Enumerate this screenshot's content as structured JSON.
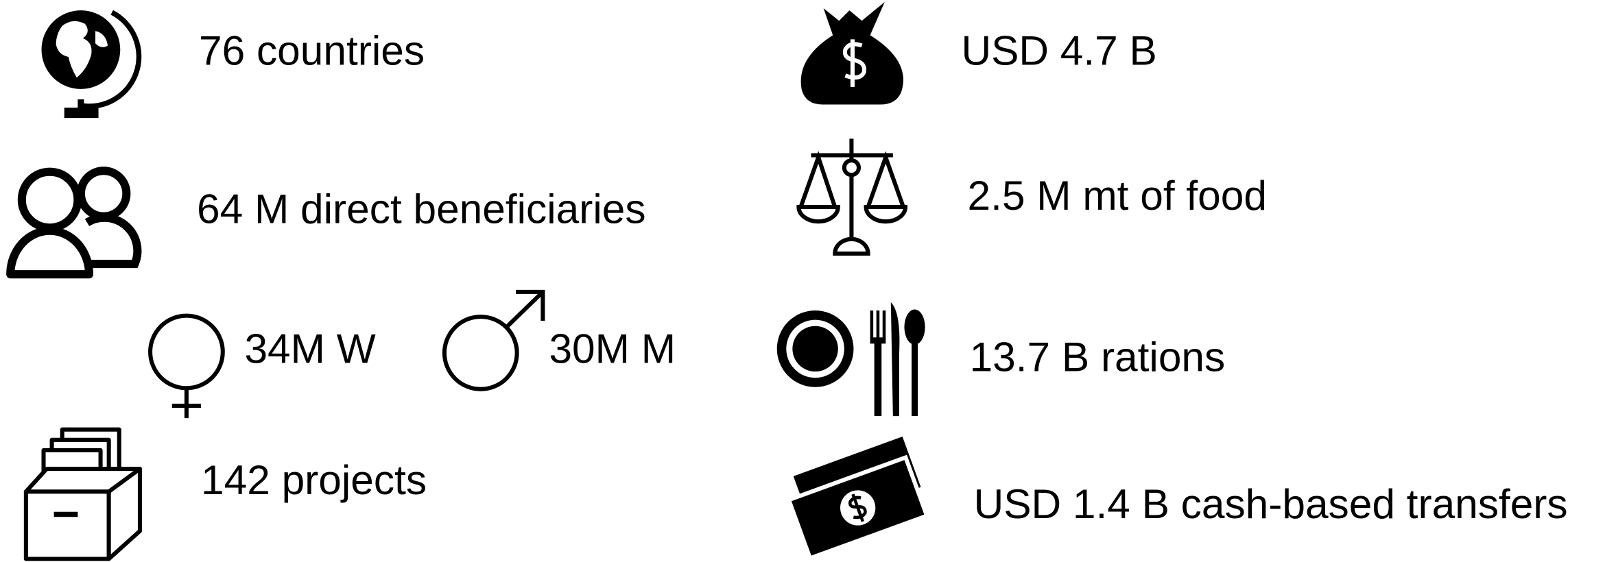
{
  "stats": {
    "left": [
      {
        "label": "76 countries"
      },
      {
        "label": "64 M direct beneficiaries"
      },
      {
        "label": "34M W"
      },
      {
        "label": "30M M"
      },
      {
        "label": "142 projects"
      }
    ],
    "right": [
      {
        "label": "USD 4.7 B"
      },
      {
        "label": "2.5 M mt of food"
      },
      {
        "label": "13.7 B rations"
      },
      {
        "label": "USD 1.4 B cash-based transfers"
      }
    ]
  }
}
